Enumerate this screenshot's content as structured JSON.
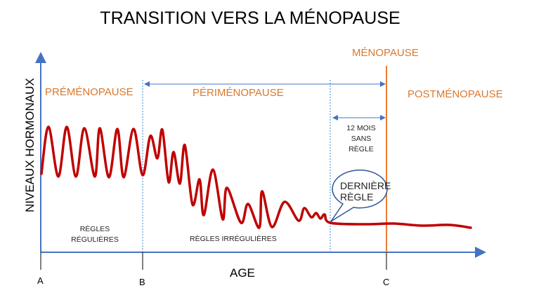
{
  "title": "TRANSITION VERS LA MÉNOPAUSE",
  "y_axis_label": "NIVEAUX HORMONAUX",
  "x_axis_label": "AGE",
  "phases": {
    "premenopause": "PRÉMÉNOPAUSE",
    "perimenopause": "PÉRIMÉNOPAUSE",
    "menopause": "MÉNOPAUSE",
    "postmenopause": "POSTMÉNOPAUSE"
  },
  "notes": {
    "regular_line1": "RÈGLES",
    "regular_line2": "RÉGULIÈRES",
    "irregular": "RÈGLES IRRÉGULIÈRES",
    "twelve_months_line1": "12 MOIS",
    "twelve_months_line2": "SANS",
    "twelve_months_line3": "RÈGLE",
    "last_period_line1": "DERNIÈRE",
    "last_period_line2": "RÈGLE"
  },
  "ticks": [
    "A",
    "B",
    "C"
  ],
  "colors": {
    "curve": "#c00000",
    "axis": "#4472c4",
    "menopause": "#ed7d31",
    "phase_text": "#d9782d"
  }
}
